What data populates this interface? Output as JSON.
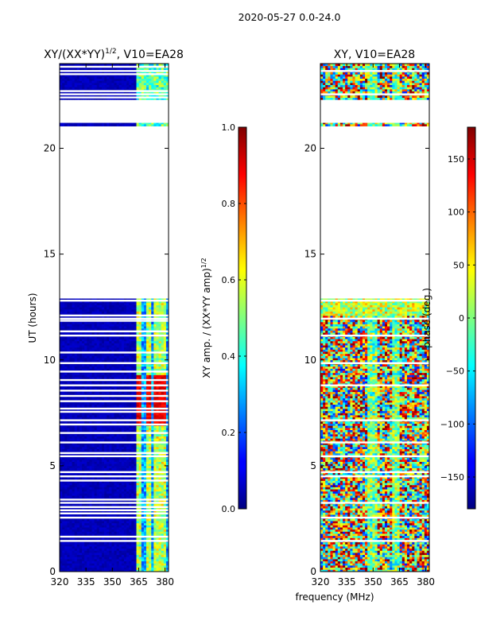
{
  "figure": {
    "suptitle": "2020-05-27 0.0-24.0"
  },
  "chart_data": [
    {
      "type": "heatmap",
      "title_main": "XY/(XX*YY)",
      "title_exp": "1/2",
      "title_tail": ", V10=EA28",
      "xlabel": "",
      "ylabel": "UT (hours)",
      "xlim": [
        320,
        382
      ],
      "ylim": [
        0,
        24
      ],
      "xticks": [
        320,
        335,
        350,
        365,
        380
      ],
      "yticks": [
        0,
        5,
        10,
        15,
        20
      ],
      "colormap": "jet",
      "colorbar": {
        "label_main": "XY amp. / (XX*YY amp)",
        "label_exp": "1/2",
        "range": [
          0.0,
          1.0
        ],
        "ticks": [
          0.0,
          0.2,
          0.4,
          0.6,
          0.8,
          1.0
        ],
        "tick_labels": [
          "0.0",
          "0.2",
          "0.4",
          "0.6",
          "0.8",
          "1.0"
        ]
      },
      "data_hours": [
        [
          0,
          12.9
        ],
        [
          21.05,
          21.2
        ],
        [
          22.3,
          24.0
        ]
      ],
      "gap_hours": [
        1.45,
        1.65,
        2.55,
        2.75,
        2.9,
        3.05,
        3.25,
        3.4,
        4.3,
        4.5,
        4.7,
        5.45,
        5.6,
        6.1,
        6.55,
        6.95,
        7.15,
        7.55,
        7.7,
        8.05,
        8.3,
        8.55,
        8.8,
        9.05,
        9.45,
        9.85,
        10.35,
        11.15,
        11.35,
        11.85,
        11.95,
        12.1,
        12.8,
        22.4,
        22.55,
        22.7,
        23.5,
        23.65,
        23.85
      ],
      "feature": {
        "description_only": false,
        "band_mhz": [
          363,
          381
        ],
        "bright_channels_mhz": [
          365.5,
          370.5,
          375.5,
          379.5
        ],
        "peak_hours": [
          [
            6.8,
            9.2
          ]
        ],
        "background_value": 0.03,
        "band_value": 0.35,
        "peak_value": 0.85
      }
    },
    {
      "type": "heatmap",
      "title": "XY, V10=EA28",
      "xlabel": "frequency (MHz)",
      "ylabel": "",
      "xlim": [
        320,
        382
      ],
      "ylim": [
        0,
        24
      ],
      "xticks": [
        320,
        335,
        350,
        365,
        380
      ],
      "yticks": [
        0,
        5,
        10,
        15,
        20
      ],
      "colormap": "jet",
      "colorbar": {
        "label": "phase (deg.)",
        "range": [
          -180,
          180
        ],
        "ticks": [
          -150,
          -100,
          -50,
          0,
          50,
          100,
          150
        ],
        "tick_labels": [
          "−150",
          "−100",
          "−50",
          "0",
          "50",
          "100",
          "150"
        ]
      },
      "data_hours": [
        [
          0,
          12.9
        ],
        [
          21.05,
          21.2
        ],
        [
          22.3,
          24.0
        ]
      ],
      "gap_hours": [
        1.45,
        2.55,
        3.25,
        4.5,
        4.7,
        5.45,
        6.1,
        7.15,
        8.8,
        9.85,
        11.15,
        11.95,
        12.8,
        22.55,
        23.65
      ],
      "feature": {
        "band_mhz": [
          320,
          382
        ],
        "mean_phase_deg": 30,
        "phase_spread_deg": 160
      }
    }
  ]
}
